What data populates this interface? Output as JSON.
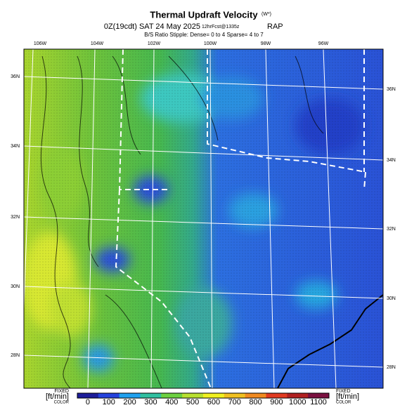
{
  "header": {
    "title": "Thermal Updraft Velocity",
    "title_suffix": "(W*)",
    "valid_time": "0Z(19cdt) SAT 24 May 2025",
    "forecast": "12hrFcst@1335z",
    "model": "RAP",
    "stipple_note": "B/S Ratio Stipple: Dense= 0 to 4 Sparse= 4 to 7"
  },
  "map": {
    "lon_labels": [
      "106W",
      "104W",
      "102W",
      "100W",
      "98W",
      "96W"
    ],
    "lat_labels_left": [
      "36N",
      "34N",
      "32N",
      "30N",
      "28N"
    ],
    "lat_labels_right": [
      "36N",
      "34N",
      "32N",
      "30N",
      "28N"
    ]
  },
  "colorbar": {
    "left_labels": [
      "FIXED",
      "[ft/min]",
      "COLOR"
    ],
    "right_labels": [
      "FIXED",
      "[ft/min]",
      "COLOR"
    ],
    "ticks": [
      0,
      100,
      200,
      300,
      400,
      500,
      600,
      700,
      800,
      900,
      1000,
      1100
    ],
    "colors": [
      "#1e1e9a",
      "#2442dc",
      "#1fa0ee",
      "#30c0a0",
      "#6cd040",
      "#b8e030",
      "#f0f020",
      "#f0c020",
      "#f08a20",
      "#e03a20",
      "#b02020",
      "#7a1040"
    ]
  }
}
